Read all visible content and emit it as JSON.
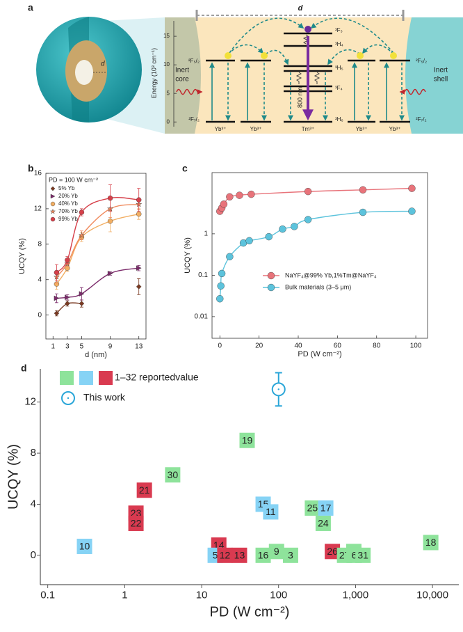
{
  "diagram": {
    "panel": "a",
    "d_label": "d",
    "sphere_label": "d",
    "axis": {
      "label": "Energy (10³ cm⁻¹)",
      "ylim": [
        -1.8,
        18.3
      ],
      "yticks": [
        0,
        5,
        10,
        15
      ]
    },
    "inert_core": [
      "Inert",
      "core"
    ],
    "inert_shell": [
      "Inert",
      "shell"
    ],
    "yb_levels": {
      "upper": "²F₅/₂",
      "lower": "²F₇/₂"
    },
    "tm_levels": [
      "³F₃",
      "³H₄",
      "³H₅",
      "³F₄",
      "³H₆"
    ],
    "ions": [
      "Yb³⁺",
      "Yb³⁺",
      "Tm³⁺",
      "Yb³⁺",
      "Yb³⁺"
    ],
    "emission": "800 nm"
  },
  "chart_data": [
    {
      "type": "line",
      "panel": "b",
      "annotation": "PD = 100 W cm⁻²",
      "xlabel": "d (nm)",
      "ylabel": "UCQY (%)",
      "xlim": [
        0,
        14
      ],
      "xticks": [
        1,
        3,
        5,
        9,
        13
      ],
      "ylim": [
        -2.7,
        16
      ],
      "yticks": [
        0,
        4,
        8,
        12,
        16
      ],
      "frame": true,
      "legend": "upper left",
      "x": [
        1.5,
        3,
        5,
        9,
        13
      ],
      "series": [
        {
          "name": "5% Yb",
          "color": "#7a3a22",
          "marker": "diamond",
          "values": [
            0.2,
            1.3,
            1.3,
            null,
            3.2
          ],
          "errors": [
            0.3,
            0.3,
            0.4,
            null,
            0.9
          ]
        },
        {
          "name": "20% Yb",
          "color": "#7b2a6a",
          "marker": "triangle",
          "values": [
            1.9,
            2.0,
            2.4,
            4.7,
            5.3
          ],
          "errors": [
            0.5,
            0.3,
            0.7,
            0.2,
            0.3
          ]
        },
        {
          "name": "40% Yb",
          "color": "#f2ae62",
          "marker": "circle",
          "values": [
            3.5,
            5.3,
            8.8,
            10.6,
            11.4
          ],
          "errors": [
            0.6,
            0.4,
            0.5,
            1.2,
            0.6
          ]
        },
        {
          "name": "70% Yb",
          "color": "#f08a5d",
          "marker": "star",
          "values": [
            4.3,
            5.8,
            9.0,
            12.0,
            12.5
          ],
          "errors": [
            0.7,
            0.3,
            0.5,
            1.0,
            0.6
          ]
        },
        {
          "name": "99% Yb",
          "color": "#d6404a",
          "marker": "circle",
          "values": [
            4.8,
            6.2,
            11.6,
            13.2,
            13.0
          ],
          "errors": [
            0.9,
            0.4,
            0.4,
            1.5,
            1.3
          ]
        }
      ]
    },
    {
      "type": "line",
      "panel": "c",
      "xlabel": "PD (W cm⁻²)",
      "ylabel": "UCQY  (%)",
      "yscale": "log",
      "xlim": [
        -4,
        106
      ],
      "xticks": [
        0,
        20,
        40,
        60,
        80,
        100
      ],
      "ylim": [
        0.003,
        30
      ],
      "yticks": [
        0.01,
        0.1,
        1
      ],
      "frame": true,
      "legend": "lower right",
      "series": [
        {
          "name": "NaYF₄@99% Yb,1%Tm@NaYF₄",
          "color": "#e8737a",
          "marker": "circle",
          "x": [
            0,
            1,
            2,
            5,
            10,
            16,
            45,
            73,
            98
          ],
          "values": [
            3.5,
            4.2,
            5.2,
            7.8,
            8.5,
            9,
            10.5,
            11.5,
            12.5
          ]
        },
        {
          "name": "Bulk materials (3–5 μm)",
          "color": "#5cc3dc",
          "marker": "circle",
          "x": [
            0,
            0.5,
            1,
            5,
            12,
            15,
            25,
            32,
            38,
            45,
            73,
            98
          ],
          "values": [
            0.027,
            0.055,
            0.11,
            0.28,
            0.6,
            0.68,
            0.85,
            1.3,
            1.5,
            2.2,
            3.3,
            3.5
          ]
        }
      ]
    },
    {
      "type": "scatter",
      "panel": "d",
      "xlabel": "PD (W cm⁻²)",
      "ylabel": "UCQY (%)",
      "xscale": "log",
      "xlim": [
        0.08,
        22000
      ],
      "xticks": [
        0.1,
        1,
        10,
        100,
        {
          "value": 1000,
          "label": "1,000"
        },
        {
          "value": 10000,
          "label": "10,000"
        }
      ],
      "ylim": [
        -2.3,
        14.6
      ],
      "yticks": [
        0,
        4,
        8,
        12
      ],
      "frame": false,
      "legend": "upper left",
      "series": [
        {
          "name": "1–32 reportedvalue",
          "legend_colors": [
            "#8ee39b",
            "#86d3f5",
            "#d93a50"
          ],
          "labels": [
            "10",
            "21",
            "23",
            "22",
            "30",
            "19",
            "15",
            "11",
            "14",
            "5",
            "12",
            "13",
            "16",
            "9",
            "3",
            "25",
            "17",
            "24",
            "26",
            "27",
            "7",
            "6",
            "31",
            "18"
          ],
          "colors": [
            "#86d3f5",
            "#d93a50",
            "#d93a50",
            "#d93a50",
            "#8ee39b",
            "#8ee39b",
            "#86d3f5",
            "#86d3f5",
            "#d93a50",
            "#86d3f5",
            "#d93a50",
            "#d93a50",
            "#8ee39b",
            "#8ee39b",
            "#8ee39b",
            "#8ee39b",
            "#86d3f5",
            "#8ee39b",
            "#d93a50",
            "#8ee39b",
            "#8ee39b",
            "#8ee39b",
            "#8ee39b",
            "#8ee39b"
          ],
          "x": [
            0.3,
            1.8,
            1.4,
            1.4,
            4.2,
            39,
            63,
            79,
            16.7,
            15,
            20,
            31,
            63,
            94,
            143,
            275,
            410,
            380,
            500,
            720,
            950,
            960,
            1250,
            9500
          ],
          "values": [
            0.7,
            5.1,
            3.3,
            2.5,
            6.3,
            9.0,
            4.0,
            3.4,
            0.8,
            0,
            0,
            0,
            0,
            0.3,
            0,
            3.7,
            3.7,
            2.5,
            0.3,
            0,
            0.3,
            0,
            0,
            1.0
          ]
        },
        {
          "name": "This work",
          "color": "#2aa6d8",
          "marker": "circle-open",
          "x": [
            100
          ],
          "values": [
            13
          ],
          "errors": [
            1.3
          ]
        }
      ]
    }
  ]
}
